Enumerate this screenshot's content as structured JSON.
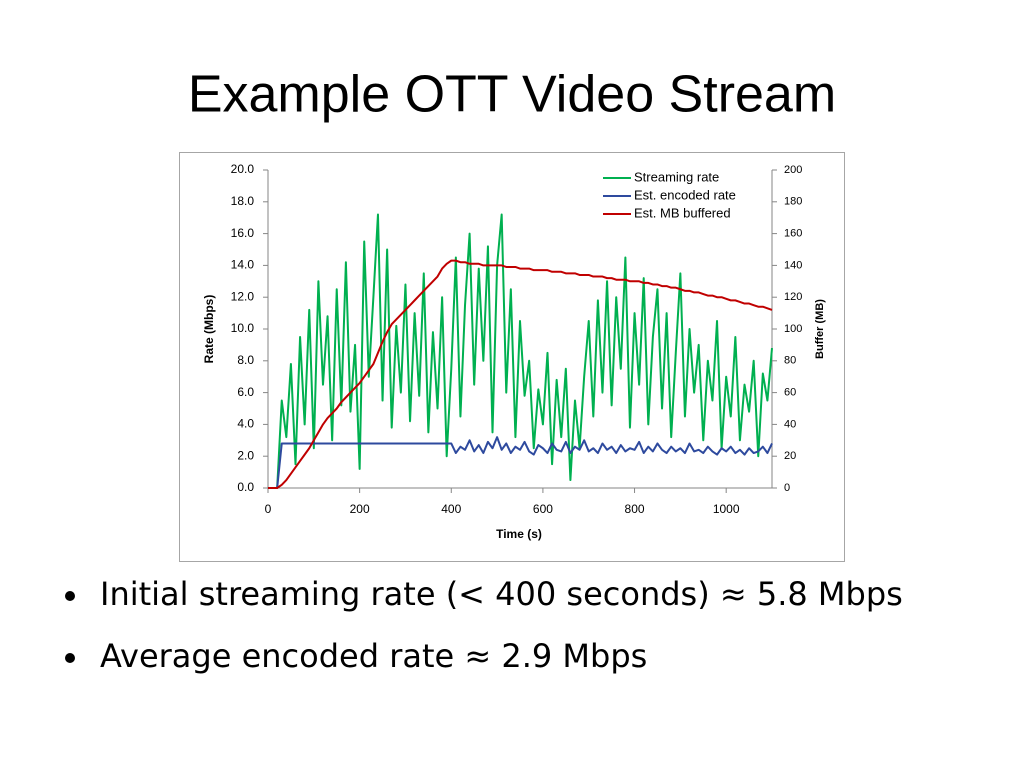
{
  "chart_data": {
    "type": "line",
    "title": "Example OTT Video Stream",
    "x_label": "Time (s)",
    "y_label": "Rate (Mbps)",
    "y2_label": "Buffer (MB)",
    "x": [
      0,
      10,
      20,
      30,
      40,
      50,
      60,
      70,
      80,
      90,
      100,
      110,
      120,
      130,
      140,
      150,
      160,
      170,
      180,
      190,
      200,
      210,
      220,
      230,
      240,
      250,
      260,
      270,
      280,
      290,
      300,
      310,
      320,
      330,
      340,
      350,
      360,
      370,
      380,
      390,
      400,
      410,
      420,
      430,
      440,
      450,
      460,
      470,
      480,
      490,
      500,
      510,
      520,
      530,
      540,
      550,
      560,
      570,
      580,
      590,
      600,
      610,
      620,
      630,
      640,
      650,
      660,
      670,
      680,
      690,
      700,
      710,
      720,
      730,
      740,
      750,
      760,
      770,
      780,
      790,
      800,
      810,
      820,
      830,
      840,
      850,
      860,
      870,
      880,
      890,
      900,
      910,
      920,
      930,
      940,
      950,
      960,
      970,
      980,
      990,
      1000,
      1010,
      1020,
      1030,
      1040,
      1050,
      1060,
      1070,
      1080,
      1090,
      1100
    ],
    "series": [
      {
        "name": "Streaming rate",
        "color": "#00b050",
        "values": [
          0,
          0,
          0,
          5.5,
          3.2,
          7.8,
          1.5,
          9.5,
          4.0,
          11.2,
          2.5,
          13.0,
          6.5,
          10.8,
          3.0,
          12.5,
          5.2,
          14.2,
          4.8,
          9.0,
          1.2,
          15.5,
          7.0,
          12.0,
          17.2,
          5.5,
          15.0,
          3.8,
          10.2,
          6.0,
          12.8,
          4.2,
          11.0,
          5.8,
          13.5,
          3.5,
          9.8,
          5.0,
          12.0,
          2.0,
          7.5,
          14.5,
          4.5,
          11.5,
          16.0,
          6.5,
          13.8,
          8.0,
          15.2,
          3.5,
          14.0,
          17.2,
          6.0,
          12.5,
          3.2,
          10.5,
          5.8,
          8.0,
          2.5,
          6.2,
          4.0,
          8.5,
          1.5,
          6.8,
          3.2,
          7.5,
          0.5,
          5.5,
          2.5,
          7.0,
          10.5,
          4.5,
          11.8,
          6.0,
          13.0,
          5.2,
          12.0,
          7.5,
          14.5,
          3.8,
          11.0,
          6.5,
          13.2,
          4.0,
          9.5,
          12.5,
          5.0,
          11.0,
          3.2,
          8.5,
          13.5,
          4.5,
          10.0,
          6.0,
          9.0,
          3.0,
          8.0,
          5.5,
          10.5,
          2.5,
          7.0,
          4.5,
          9.5,
          3.0,
          6.5,
          4.8,
          8.0,
          2.0,
          7.2,
          5.5,
          8.8
        ]
      },
      {
        "name": "Est. encoded rate",
        "color": "#2e4a9e",
        "values": [
          0,
          0,
          0,
          2.8,
          2.8,
          2.8,
          2.8,
          2.8,
          2.8,
          2.8,
          2.8,
          2.8,
          2.8,
          2.8,
          2.8,
          2.8,
          2.8,
          2.8,
          2.8,
          2.8,
          2.8,
          2.8,
          2.8,
          2.8,
          2.8,
          2.8,
          2.8,
          2.8,
          2.8,
          2.8,
          2.8,
          2.8,
          2.8,
          2.8,
          2.8,
          2.8,
          2.8,
          2.8,
          2.8,
          2.8,
          2.8,
          2.2,
          2.6,
          2.4,
          3.0,
          2.3,
          2.7,
          2.2,
          2.9,
          2.5,
          3.2,
          2.4,
          2.8,
          2.2,
          2.6,
          2.4,
          2.9,
          2.3,
          2.1,
          2.7,
          2.5,
          2.2,
          2.8,
          2.4,
          2.3,
          2.9,
          2.2,
          2.6,
          2.4,
          3.0,
          2.3,
          2.5,
          2.2,
          2.8,
          2.4,
          2.6,
          2.2,
          2.7,
          2.3,
          2.5,
          2.4,
          2.9,
          2.2,
          2.6,
          2.3,
          2.8,
          2.4,
          2.2,
          2.6,
          2.3,
          2.5,
          2.2,
          2.8,
          2.3,
          2.4,
          2.2,
          2.6,
          2.3,
          2.1,
          2.5,
          2.3,
          2.6,
          2.2,
          2.4,
          2.1,
          2.5,
          2.2,
          2.3,
          2.6,
          2.2,
          2.8
        ]
      },
      {
        "name": "Est. MB buffered",
        "color": "#c00000",
        "axis": "y2",
        "values": [
          0,
          0,
          0,
          2,
          5,
          9,
          13,
          17,
          21,
          25,
          30,
          35,
          40,
          44,
          47,
          50,
          54,
          57,
          60,
          63,
          66,
          70,
          74,
          78,
          85,
          92,
          98,
          103,
          106,
          109,
          112,
          115,
          118,
          121,
          124,
          127,
          130,
          133,
          138,
          141,
          143,
          143,
          142,
          142,
          141,
          141,
          141,
          140,
          140,
          140,
          140,
          140,
          139,
          139,
          139,
          138,
          138,
          138,
          137,
          137,
          137,
          137,
          136,
          136,
          136,
          135,
          135,
          135,
          134,
          134,
          134,
          133,
          133,
          133,
          132,
          132,
          131,
          131,
          131,
          130,
          130,
          130,
          129,
          129,
          128,
          128,
          127,
          127,
          126,
          126,
          125,
          124,
          124,
          123,
          123,
          122,
          121,
          121,
          120,
          120,
          119,
          118,
          118,
          117,
          116,
          116,
          115,
          114,
          114,
          113,
          112
        ]
      }
    ],
    "xlim": [
      0,
      1100
    ],
    "xticks": [
      0,
      200,
      400,
      600,
      800,
      1000
    ],
    "ylim": [
      0,
      20
    ],
    "yticks": [
      {
        "value": 0,
        "label": "0.0"
      },
      {
        "value": 2,
        "label": "2.0"
      },
      {
        "value": 4,
        "label": "4.0"
      },
      {
        "value": 6,
        "label": "6.0"
      },
      {
        "value": 8,
        "label": "8.0"
      },
      {
        "value": 10,
        "label": "10.0"
      },
      {
        "value": 12,
        "label": "12.0"
      },
      {
        "value": 14,
        "label": "14.0"
      },
      {
        "value": 16,
        "label": "16.0"
      },
      {
        "value": 18,
        "label": "18.0"
      },
      {
        "value": 20,
        "label": "20.0"
      }
    ],
    "y2lim": [
      0,
      200
    ],
    "y2ticks": [
      0,
      20,
      40,
      60,
      80,
      100,
      120,
      140,
      160,
      180,
      200
    ],
    "grid": false,
    "legend": "upper right"
  },
  "bullets": [
    "Initial streaming rate (< 400 seconds) ≈ 5.8 Mbps",
    "Average encoded rate ≈ 2.9 Mbps"
  ]
}
